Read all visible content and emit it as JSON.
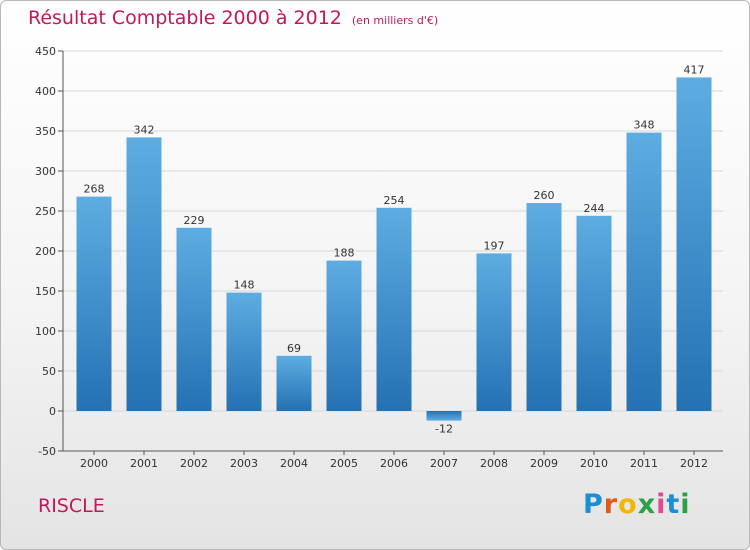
{
  "header": {
    "title": "Résultat Comptable 2000 à 2012",
    "unit": "(en milliers d'€)"
  },
  "footer": {
    "town": "RISCLE",
    "logo_letters": [
      "P",
      "r",
      "o",
      "x",
      "i",
      "t",
      "i"
    ]
  },
  "colors": {
    "title": "#c2185b",
    "bar_light": "#5dade2",
    "bar_dark": "#2471b3",
    "logo": [
      "#1a8fd1",
      "#e05a1c",
      "#f2b705",
      "#2aa147",
      "#e24b8f",
      "#1a8fd1",
      "#2aa147"
    ]
  },
  "chart_data": {
    "type": "bar",
    "title": "Résultat Comptable 2000 à 2012",
    "subtitle": "(en milliers d'€)",
    "xlabel": "",
    "ylabel": "",
    "categories": [
      "2000",
      "2001",
      "2002",
      "2003",
      "2004",
      "2005",
      "2006",
      "2007",
      "2008",
      "2009",
      "2010",
      "2011",
      "2012"
    ],
    "values": [
      268,
      342,
      229,
      148,
      69,
      188,
      254,
      -12,
      197,
      260,
      244,
      348,
      417
    ],
    "ylim": [
      -50,
      450
    ],
    "yticks": [
      -50,
      0,
      50,
      100,
      150,
      200,
      250,
      300,
      350,
      400,
      450
    ],
    "grid": true,
    "legend": "none"
  }
}
